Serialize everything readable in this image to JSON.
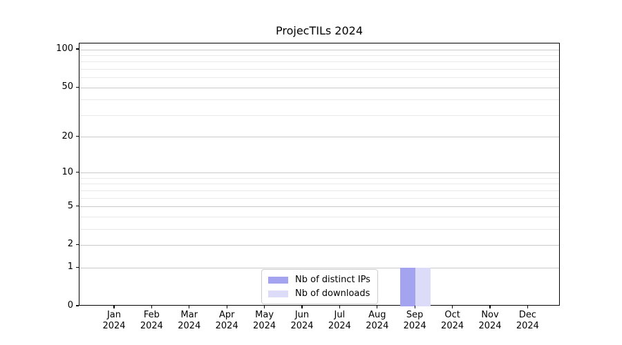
{
  "chart_data": {
    "type": "bar",
    "title": "ProjecTILs 2024",
    "categories": [
      {
        "month": "Jan",
        "year": "2024"
      },
      {
        "month": "Feb",
        "year": "2024"
      },
      {
        "month": "Mar",
        "year": "2024"
      },
      {
        "month": "Apr",
        "year": "2024"
      },
      {
        "month": "May",
        "year": "2024"
      },
      {
        "month": "Jun",
        "year": "2024"
      },
      {
        "month": "Jul",
        "year": "2024"
      },
      {
        "month": "Aug",
        "year": "2024"
      },
      {
        "month": "Sep",
        "year": "2024"
      },
      {
        "month": "Oct",
        "year": "2024"
      },
      {
        "month": "Nov",
        "year": "2024"
      },
      {
        "month": "Dec",
        "year": "2024"
      }
    ],
    "series": [
      {
        "name": "Nb of distinct IPs",
        "color": "#a3a3ef",
        "values": [
          0,
          0,
          0,
          0,
          0,
          0,
          0,
          0,
          1,
          0,
          0,
          0
        ]
      },
      {
        "name": "Nb of downloads",
        "color": "#dcdcf9",
        "values": [
          0,
          0,
          0,
          0,
          0,
          0,
          0,
          0,
          1,
          0,
          0,
          0
        ]
      }
    ],
    "xlabel": "",
    "ylabel": "",
    "yscale": "log1p",
    "ylim": [
      0,
      112
    ],
    "yticks": [
      0,
      1,
      2,
      5,
      10,
      20,
      50,
      100
    ],
    "minor_gridlines": [
      3,
      4,
      6,
      7,
      8,
      9,
      30,
      40,
      60,
      70,
      80,
      90
    ],
    "grid": "horizontal",
    "legend": {
      "position": "lower-center",
      "entries": [
        "Nb of distinct IPs",
        "Nb of downloads"
      ]
    },
    "colors": {
      "spine": "#000000",
      "major_grid": "#c9c9c9",
      "minor_grid": "#e9e9e9",
      "background": "#ffffff"
    }
  }
}
